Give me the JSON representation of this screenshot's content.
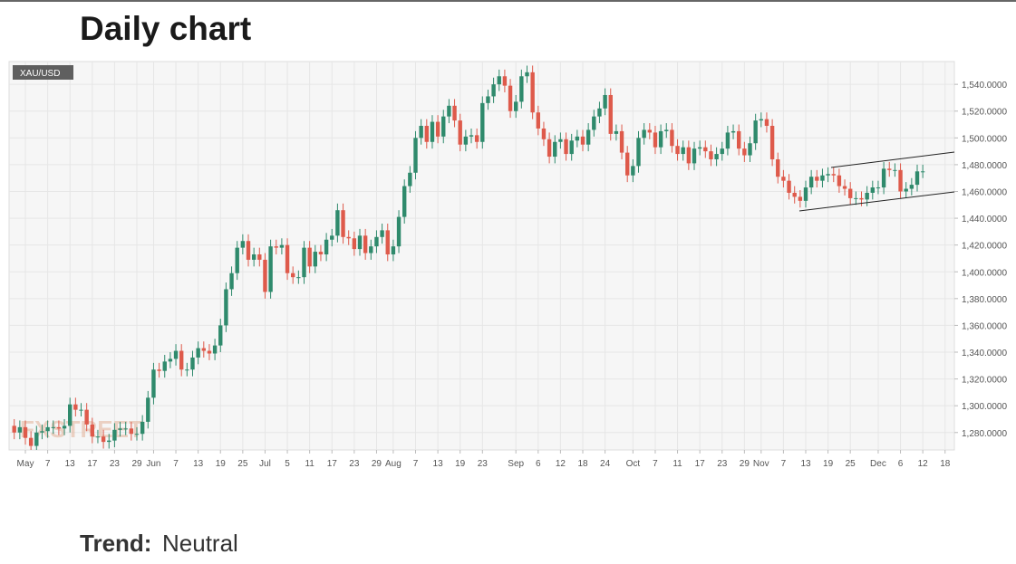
{
  "chart_data": {
    "type": "candlestick",
    "title": "Daily chart",
    "symbol": "XAU/USD",
    "watermark": "FXSTREET",
    "categories": [
      null,
      null,
      "May",
      null,
      null,
      null,
      "7",
      null,
      null,
      null,
      "13",
      null,
      null,
      null,
      "17",
      null,
      null,
      null,
      "23",
      null,
      null,
      null,
      "29",
      null,
      null,
      "Jun",
      null,
      null,
      null,
      "7",
      null,
      null,
      null,
      "13",
      null,
      null,
      null,
      "19",
      null,
      null,
      null,
      "25",
      null,
      null,
      null,
      "Jul",
      null,
      null,
      null,
      "5",
      null,
      null,
      null,
      "11",
      null,
      null,
      null,
      "17",
      null,
      null,
      null,
      "23",
      null,
      null,
      null,
      "29",
      null,
      null,
      "Aug",
      null,
      null,
      null,
      "7",
      null,
      null,
      null,
      "13",
      null,
      null,
      null,
      "19",
      null,
      null,
      null,
      "23",
      null,
      null,
      null,
      null,
      null,
      "Sep",
      null,
      null,
      null,
      "6",
      null,
      null,
      null,
      "12",
      null,
      null,
      null,
      "18",
      null,
      null,
      null,
      "24",
      null,
      null,
      null,
      null,
      "Oct",
      null,
      null,
      null,
      "7",
      null,
      null,
      null,
      "11",
      null,
      null,
      null,
      "17",
      null,
      null,
      null,
      "23",
      null,
      null,
      null,
      "29",
      null,
      null,
      "Nov",
      null,
      null,
      null,
      "7",
      null,
      null,
      null,
      "13",
      null,
      null,
      null,
      "19",
      null,
      null,
      null,
      "25",
      null,
      null,
      null,
      null,
      "Dec",
      null,
      null,
      null,
      "6",
      null,
      null,
      null,
      "12",
      null,
      null,
      null,
      "18"
    ],
    "open": [
      1285,
      1280,
      1284,
      1276,
      1270,
      1280,
      1281,
      1284,
      1284,
      1283,
      1285,
      1301,
      1297,
      1297,
      1286,
      1277,
      1277,
      1273,
      1274,
      1282,
      1283,
      1283,
      1279,
      1279,
      1288,
      1306,
      1327,
      1326,
      1333,
      1335,
      1341,
      1327,
      1327,
      1336,
      1343,
      1341,
      1339,
      1345,
      1360,
      1387,
      1399,
      1418,
      1423,
      1409,
      1413,
      1409,
      1385,
      1419,
      1418,
      1420,
      1399,
      1396,
      1396,
      1418,
      1404,
      1415,
      1413,
      1424,
      1427,
      1446,
      1426,
      1425,
      1417,
      1427,
      1414,
      1419,
      1426,
      1431,
      1413,
      1419,
      1441,
      1464,
      1474,
      1500,
      1509,
      1497,
      1512,
      1501,
      1516,
      1524,
      1513,
      1495,
      1501,
      1502,
      1497,
      1526,
      1531,
      1540,
      1546,
      1539,
      1520,
      1527,
      1546,
      1549,
      1519,
      1507,
      1499,
      1486,
      1497,
      1499,
      1488,
      1498,
      1501,
      1495,
      1506,
      1516,
      1522,
      1532,
      1503,
      1505,
      1489,
      1472,
      1479,
      1500,
      1506,
      1504,
      1493,
      1505,
      1506,
      1494,
      1488,
      1493,
      1481,
      1492,
      1493,
      1490,
      1484,
      1488,
      1492,
      1504,
      1505,
      1492,
      1487,
      1496,
      1513,
      1514,
      1509,
      1484,
      1471,
      1468,
      1459,
      1456,
      1453,
      1463,
      1471,
      1468,
      1472,
      1473,
      1472,
      1464,
      1462,
      1455,
      1455,
      1454,
      1459,
      1463,
      1463,
      1477,
      1476,
      1476,
      1460,
      1462,
      1465,
      1475,
      null,
      null,
      null,
      null
    ],
    "high": [
      1290,
      1289,
      1289,
      1281,
      1285,
      1286,
      1289,
      1289,
      1289,
      1290,
      1306,
      1306,
      1302,
      1302,
      1291,
      1282,
      1282,
      1279,
      1287,
      1288,
      1288,
      1288,
      1284,
      1293,
      1311,
      1332,
      1332,
      1338,
      1340,
      1346,
      1346,
      1332,
      1341,
      1348,
      1348,
      1346,
      1350,
      1365,
      1392,
      1404,
      1423,
      1428,
      1428,
      1418,
      1418,
      1414,
      1424,
      1424,
      1425,
      1425,
      1404,
      1401,
      1423,
      1423,
      1420,
      1420,
      1429,
      1432,
      1451,
      1451,
      1431,
      1430,
      1432,
      1432,
      1424,
      1431,
      1436,
      1436,
      1424,
      1446,
      1469,
      1479,
      1505,
      1514,
      1514,
      1517,
      1517,
      1521,
      1529,
      1529,
      1518,
      1506,
      1507,
      1507,
      1531,
      1536,
      1545,
      1551,
      1551,
      1544,
      1532,
      1551,
      1554,
      1554,
      1524,
      1512,
      1504,
      1502,
      1504,
      1504,
      1503,
      1506,
      1506,
      1511,
      1521,
      1527,
      1537,
      1537,
      1510,
      1510,
      1494,
      1484,
      1505,
      1511,
      1511,
      1509,
      1510,
      1511,
      1511,
      1499,
      1498,
      1498,
      1497,
      1498,
      1498,
      1495,
      1493,
      1497,
      1509,
      1510,
      1510,
      1497,
      1501,
      1518,
      1519,
      1519,
      1514,
      1489,
      1476,
      1473,
      1464,
      1461,
      1468,
      1476,
      1476,
      1477,
      1478,
      1478,
      1477,
      1469,
      1467,
      1460,
      1460,
      1464,
      1468,
      1468,
      1482,
      1482,
      1481,
      1481,
      1467,
      1470,
      1480,
      1480,
      null,
      null,
      null,
      null
    ],
    "low": [
      1275,
      1275,
      1271,
      1267,
      1267,
      1275,
      1276,
      1279,
      1278,
      1278,
      1280,
      1292,
      1292,
      1281,
      1272,
      1272,
      1268,
      1268,
      1269,
      1277,
      1278,
      1274,
      1274,
      1274,
      1283,
      1301,
      1321,
      1321,
      1328,
      1330,
      1322,
      1322,
      1322,
      1331,
      1336,
      1334,
      1334,
      1340,
      1355,
      1382,
      1394,
      1413,
      1404,
      1404,
      1404,
      1380,
      1380,
      1413,
      1413,
      1394,
      1391,
      1391,
      1391,
      1399,
      1399,
      1408,
      1408,
      1419,
      1422,
      1421,
      1420,
      1412,
      1412,
      1409,
      1409,
      1414,
      1421,
      1408,
      1408,
      1414,
      1436,
      1459,
      1469,
      1495,
      1492,
      1492,
      1496,
      1496,
      1511,
      1508,
      1490,
      1490,
      1496,
      1492,
      1492,
      1521,
      1526,
      1535,
      1534,
      1515,
      1515,
      1522,
      1541,
      1514,
      1502,
      1494,
      1481,
      1481,
      1492,
      1483,
      1483,
      1493,
      1490,
      1490,
      1501,
      1511,
      1517,
      1498,
      1498,
      1484,
      1467,
      1467,
      1474,
      1495,
      1499,
      1488,
      1488,
      1500,
      1489,
      1483,
      1483,
      1476,
      1476,
      1487,
      1485,
      1479,
      1479,
      1483,
      1487,
      1499,
      1487,
      1482,
      1482,
      1491,
      1508,
      1504,
      1479,
      1466,
      1463,
      1454,
      1451,
      1448,
      1448,
      1458,
      1463,
      1463,
      1467,
      1467,
      1459,
      1457,
      1450,
      1450,
      1449,
      1449,
      1454,
      1458,
      1458,
      1471,
      1471,
      1455,
      1455,
      1457,
      1460,
      1470,
      null,
      null,
      null,
      null
    ],
    "close": [
      1280,
      1284,
      1276,
      1270,
      1280,
      1281,
      1284,
      1284,
      1283,
      1285,
      1301,
      1297,
      1297,
      1286,
      1277,
      1277,
      1273,
      1274,
      1282,
      1283,
      1283,
      1279,
      1279,
      1288,
      1306,
      1327,
      1326,
      1333,
      1335,
      1341,
      1327,
      1327,
      1336,
      1343,
      1341,
      1339,
      1345,
      1360,
      1387,
      1399,
      1418,
      1423,
      1409,
      1413,
      1409,
      1385,
      1419,
      1418,
      1420,
      1399,
      1396,
      1396,
      1418,
      1404,
      1415,
      1413,
      1424,
      1427,
      1446,
      1426,
      1425,
      1417,
      1427,
      1414,
      1419,
      1426,
      1431,
      1413,
      1419,
      1441,
      1464,
      1474,
      1500,
      1509,
      1497,
      1512,
      1501,
      1516,
      1524,
      1513,
      1495,
      1501,
      1502,
      1497,
      1526,
      1531,
      1540,
      1546,
      1539,
      1520,
      1527,
      1546,
      1549,
      1519,
      1507,
      1499,
      1486,
      1497,
      1499,
      1488,
      1498,
      1501,
      1495,
      1506,
      1516,
      1522,
      1532,
      1503,
      1505,
      1489,
      1472,
      1479,
      1500,
      1506,
      1504,
      1493,
      1505,
      1506,
      1494,
      1488,
      1493,
      1481,
      1492,
      1493,
      1490,
      1484,
      1488,
      1492,
      1504,
      1505,
      1492,
      1487,
      1496,
      1513,
      1514,
      1509,
      1484,
      1471,
      1468,
      1459,
      1456,
      1453,
      1463,
      1471,
      1468,
      1472,
      1473,
      1472,
      1464,
      1462,
      1455,
      1455,
      1454,
      1459,
      1463,
      1463,
      1477,
      1476,
      1476,
      1460,
      1462,
      1465,
      1475,
      1475,
      null,
      null,
      null,
      null
    ],
    "up_color": "#2f8a6c",
    "down_color": "#de5a4b",
    "ylim": [
      1267,
      1557
    ],
    "yticks": [
      {
        "value": 1280,
        "label": "1,280.0000"
      },
      {
        "value": 1300,
        "label": "1,300.0000"
      },
      {
        "value": 1320,
        "label": "1,320.0000"
      },
      {
        "value": 1340,
        "label": "1,340.0000"
      },
      {
        "value": 1360,
        "label": "1,360.0000"
      },
      {
        "value": 1380,
        "label": "1,380.0000"
      },
      {
        "value": 1400,
        "label": "1,400.0000"
      },
      {
        "value": 1420,
        "label": "1,420.0000"
      },
      {
        "value": 1440,
        "label": "1,440.0000"
      },
      {
        "value": 1460,
        "label": "1,460.0000"
      },
      {
        "value": 1480,
        "label": "1,480.0000"
      },
      {
        "value": 1500,
        "label": "1,500.0000"
      },
      {
        "value": 1520,
        "label": "1,520.0000"
      },
      {
        "value": 1540,
        "label": "1,540.0000"
      }
    ],
    "grid": true
  },
  "trend": {
    "label": "Trend:",
    "value": "Neutral"
  }
}
